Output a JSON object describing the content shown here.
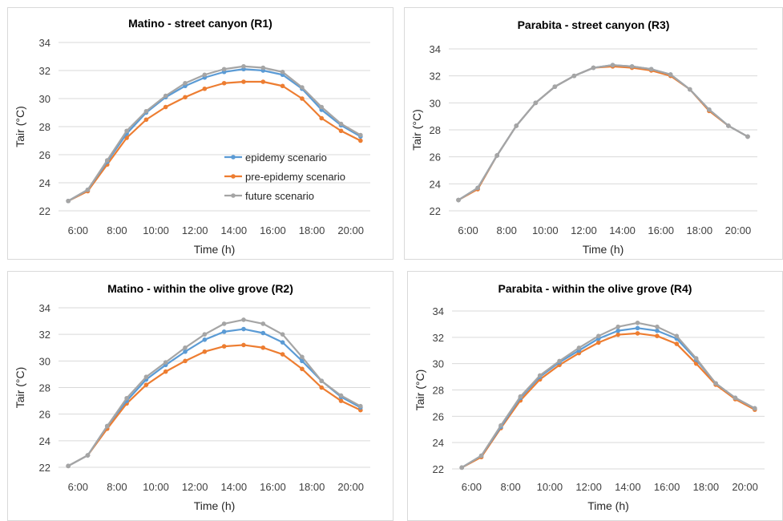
{
  "chart_data": [
    {
      "type": "line",
      "title": "Matino - street canyon (R1)",
      "xlabel": "Time (h)",
      "ylabel": "Tair (°C)",
      "x_ticks": [
        "6:00",
        "8:00",
        "10:00",
        "12:00",
        "14:00",
        "16:00",
        "18:00",
        "20:00"
      ],
      "x": [
        5.5,
        6.5,
        7.5,
        8.5,
        9.5,
        10.5,
        11.5,
        12.5,
        13.5,
        14.5,
        15.5,
        16.5,
        17.5,
        18.5,
        19.5,
        20.5
      ],
      "ylim": [
        22,
        34
      ],
      "y_ticks": [
        22,
        24,
        26,
        28,
        30,
        32,
        34
      ],
      "grid": "horizontal",
      "legend": "inside-right",
      "series": [
        {
          "name": "epidemy scenario",
          "color": "#5B9BD5",
          "values": [
            22.7,
            23.5,
            25.5,
            27.5,
            29.0,
            30.1,
            30.9,
            31.5,
            31.9,
            32.1,
            32.0,
            31.7,
            30.7,
            29.2,
            28.1,
            27.3
          ]
        },
        {
          "name": "pre-epidemy scenario",
          "color": "#ED7D31",
          "values": [
            22.7,
            23.4,
            25.3,
            27.2,
            28.5,
            29.4,
            30.1,
            30.7,
            31.1,
            31.2,
            31.2,
            30.9,
            30.0,
            28.6,
            27.7,
            27.0
          ]
        },
        {
          "name": "future scenario",
          "color": "#A5A5A5",
          "values": [
            22.7,
            23.5,
            25.6,
            27.7,
            29.1,
            30.2,
            31.1,
            31.7,
            32.1,
            32.3,
            32.2,
            31.9,
            30.8,
            29.4,
            28.2,
            27.4
          ]
        }
      ]
    },
    {
      "type": "line",
      "title": "Parabita - street canyon (R3)",
      "xlabel": "Time (h)",
      "ylabel": "Tair (°C)",
      "x_ticks": [
        "6:00",
        "8:00",
        "10:00",
        "12:00",
        "14:00",
        "16:00",
        "18:00",
        "20:00"
      ],
      "x": [
        5.5,
        6.5,
        7.5,
        8.5,
        9.5,
        10.5,
        11.5,
        12.5,
        13.5,
        14.5,
        15.5,
        16.5,
        17.5,
        18.5,
        19.5,
        20.5
      ],
      "ylim": [
        22,
        34
      ],
      "y_ticks": [
        22,
        24,
        26,
        28,
        30,
        32,
        34
      ],
      "grid": "horizontal",
      "series": [
        {
          "color": "#5B9BD5",
          "values": [
            22.8,
            23.7,
            26.1,
            28.3,
            30.0,
            31.2,
            32.0,
            32.6,
            32.8,
            32.7,
            32.5,
            32.1,
            31.0,
            29.5,
            28.3,
            27.5
          ]
        },
        {
          "color": "#ED7D31",
          "values": [
            22.8,
            23.6,
            26.1,
            28.3,
            30.0,
            31.2,
            32.0,
            32.6,
            32.7,
            32.6,
            32.4,
            32.0,
            31.0,
            29.4,
            28.3,
            27.5
          ]
        },
        {
          "color": "#A5A5A5",
          "values": [
            22.8,
            23.7,
            26.1,
            28.3,
            30.0,
            31.2,
            32.0,
            32.6,
            32.8,
            32.7,
            32.5,
            32.1,
            31.0,
            29.5,
            28.3,
            27.5
          ]
        }
      ]
    },
    {
      "type": "line",
      "title": "Matino - within the olive grove (R2)",
      "xlabel": "Time (h)",
      "ylabel": "Tair (°C)",
      "x_ticks": [
        "6:00",
        "8:00",
        "10:00",
        "12:00",
        "14:00",
        "16:00",
        "18:00",
        "20:00"
      ],
      "x": [
        5.5,
        6.5,
        7.5,
        8.5,
        9.5,
        10.5,
        11.5,
        12.5,
        13.5,
        14.5,
        15.5,
        16.5,
        17.5,
        18.5,
        19.5,
        20.5
      ],
      "ylim": [
        22,
        34
      ],
      "y_ticks": [
        22,
        24,
        26,
        28,
        30,
        32,
        34
      ],
      "grid": "horizontal",
      "series": [
        {
          "color": "#5B9BD5",
          "values": [
            22.1,
            22.9,
            25.1,
            27.0,
            28.6,
            29.7,
            30.7,
            31.6,
            32.2,
            32.4,
            32.1,
            31.4,
            30.0,
            28.5,
            27.3,
            26.5
          ]
        },
        {
          "color": "#ED7D31",
          "values": [
            22.1,
            22.9,
            24.9,
            26.8,
            28.2,
            29.2,
            30.0,
            30.7,
            31.1,
            31.2,
            31.0,
            30.5,
            29.4,
            28.0,
            27.0,
            26.3
          ]
        },
        {
          "color": "#A5A5A5",
          "values": [
            22.1,
            22.9,
            25.1,
            27.2,
            28.8,
            29.9,
            31.0,
            32.0,
            32.8,
            33.1,
            32.8,
            32.0,
            30.3,
            28.5,
            27.4,
            26.6
          ]
        }
      ]
    },
    {
      "type": "line",
      "title": "Parabita - within the olive grove (R4)",
      "xlabel": "Time (h)",
      "ylabel": "Tair (°C)",
      "x_ticks": [
        "6:00",
        "8:00",
        "10:00",
        "12:00",
        "14:00",
        "16:00",
        "18:00",
        "20:00"
      ],
      "x": [
        5.5,
        6.5,
        7.5,
        8.5,
        9.5,
        10.5,
        11.5,
        12.5,
        13.5,
        14.5,
        15.5,
        16.5,
        17.5,
        18.5,
        19.5,
        20.5
      ],
      "ylim": [
        22,
        34
      ],
      "y_ticks": [
        22,
        24,
        26,
        28,
        30,
        32,
        34
      ],
      "grid": "horizontal",
      "series": [
        {
          "color": "#5B9BD5",
          "values": [
            22.1,
            23.0,
            25.2,
            27.4,
            29.0,
            30.1,
            31.0,
            31.9,
            32.5,
            32.7,
            32.5,
            31.9,
            30.3,
            28.5,
            27.4,
            26.6
          ]
        },
        {
          "color": "#ED7D31",
          "values": [
            22.1,
            22.9,
            25.1,
            27.2,
            28.8,
            29.9,
            30.8,
            31.6,
            32.2,
            32.3,
            32.1,
            31.5,
            30.0,
            28.4,
            27.3,
            26.5
          ]
        },
        {
          "color": "#A5A5A5",
          "values": [
            22.1,
            23.0,
            25.3,
            27.5,
            29.1,
            30.2,
            31.2,
            32.1,
            32.8,
            33.1,
            32.8,
            32.1,
            30.4,
            28.5,
            27.4,
            26.6
          ]
        }
      ]
    }
  ]
}
